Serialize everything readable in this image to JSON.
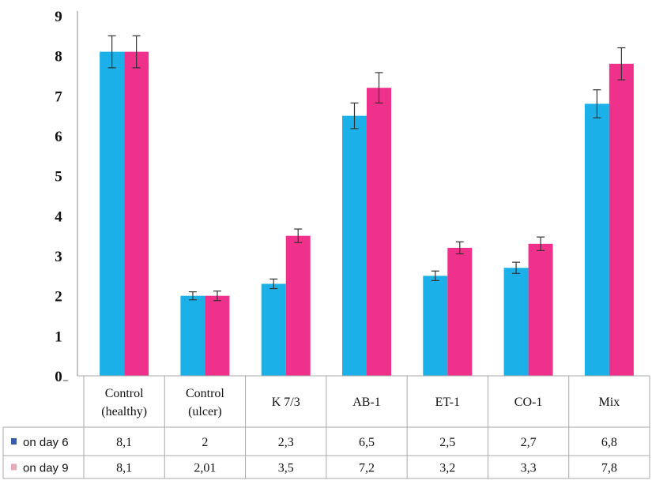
{
  "chart_data": {
    "type": "bar",
    "categories": [
      [
        "Control",
        "(healthy)"
      ],
      [
        "Control",
        "(ulcer)"
      ],
      [
        "K 7/3"
      ],
      [
        "AB-1"
      ],
      [
        "ET-1"
      ],
      [
        "CO-1"
      ],
      [
        "Mix"
      ]
    ],
    "series": [
      {
        "name": "on day 6",
        "color": "#1BB0E8",
        "values": [
          8.1,
          2,
          2.3,
          6.5,
          2.5,
          2.7,
          6.8
        ],
        "errors": [
          0.4,
          0.1,
          0.12,
          0.32,
          0.12,
          0.14,
          0.35
        ],
        "table_values": [
          "8,1",
          "2",
          "2,3",
          "6,5",
          "2,5",
          "2,7",
          "6,8"
        ]
      },
      {
        "name": "on day 9",
        "color": "#F0318C",
        "values": [
          8.1,
          2,
          3.5,
          7.2,
          3.2,
          3.3,
          7.8
        ],
        "errors": [
          0.4,
          0.12,
          0.17,
          0.38,
          0.15,
          0.17,
          0.4
        ],
        "table_values": [
          "8,1",
          "2,01",
          "3,5",
          "7,2",
          "3,2",
          "3,3",
          "7,8"
        ]
      }
    ],
    "yticks": [
      "0",
      "1",
      "2",
      "3",
      "4",
      "5",
      "6",
      "7",
      "8",
      "9"
    ],
    "ylim": [
      0,
      9
    ],
    "legend_placement": "data-table-left",
    "grid": false,
    "title": "",
    "xlabel": "",
    "ylabel": ""
  }
}
